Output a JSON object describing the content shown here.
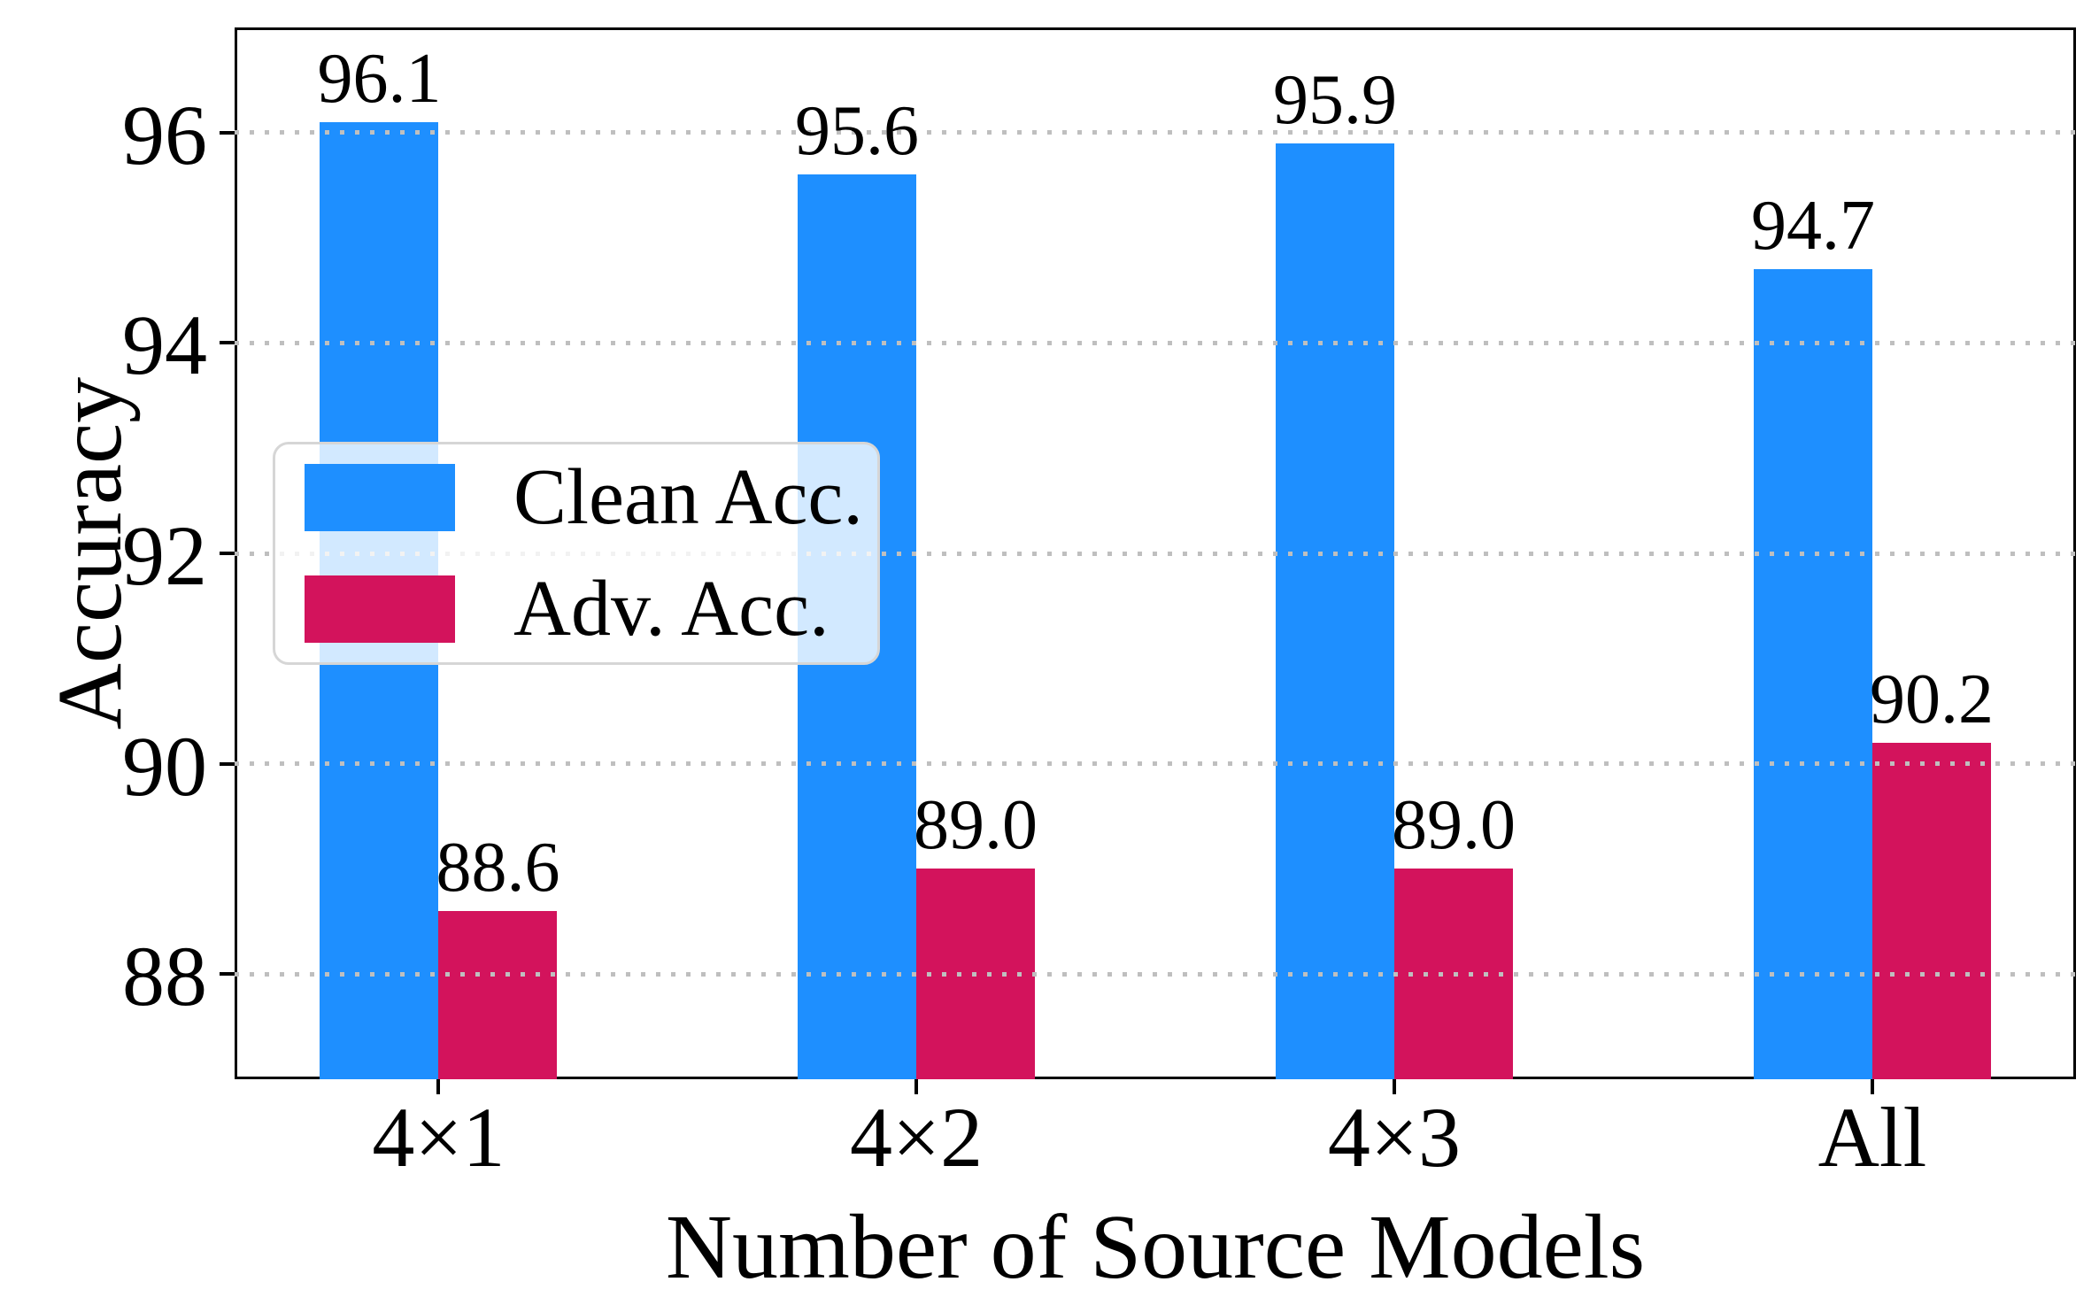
{
  "chart_data": {
    "type": "bar",
    "title": "",
    "xlabel": "Number of Source Models",
    "ylabel": "Accuracy",
    "categories": [
      "4×1",
      "4×2",
      "4×3",
      "All"
    ],
    "series": [
      {
        "name": "Clean Acc.",
        "color": "#1E8FFF",
        "values": [
          96.1,
          95.6,
          95.9,
          94.7
        ],
        "labels": [
          "96.1",
          "95.6",
          "95.9",
          "94.7"
        ]
      },
      {
        "name": "Adv. Acc.",
        "color": "#D3135C",
        "values": [
          88.6,
          89.0,
          89.0,
          90.2
        ],
        "labels": [
          "88.6",
          "89.0",
          "89.0",
          "90.2"
        ]
      }
    ],
    "ylim": [
      87,
      97
    ],
    "yticks": [
      88,
      90,
      92,
      94,
      96
    ],
    "ytick_labels": [
      "88",
      "90",
      "92",
      "94",
      "96"
    ],
    "grid": "horizontal dotted, drawn above bars",
    "gridline_color": "#bfbfbf",
    "legend_position": "upper left inside plot",
    "frame_color": "#000000"
  }
}
